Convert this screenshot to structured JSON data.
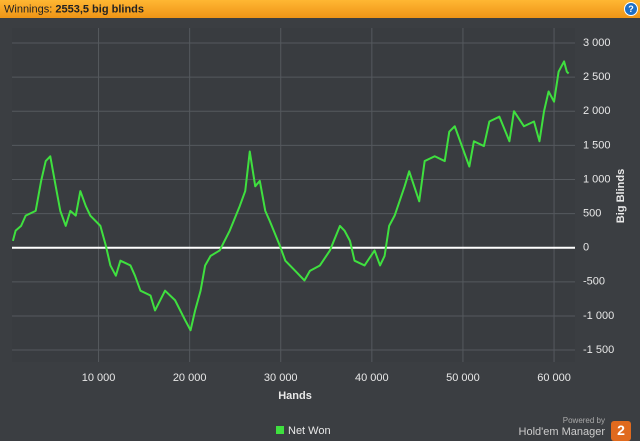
{
  "header": {
    "label": "Winnings:",
    "value": "2553,5 big blinds"
  },
  "chart_data": {
    "type": "line",
    "x_label": "Hands",
    "y_label": "Big Blinds",
    "x": [
      600,
      900,
      1500,
      2000,
      3100,
      3700,
      4200,
      4700,
      5300,
      5800,
      6400,
      6900,
      7500,
      8000,
      8600,
      9100,
      10200,
      10800,
      11300,
      11900,
      12400,
      13500,
      14000,
      14600,
      15700,
      16200,
      17300,
      18400,
      19500,
      20100,
      20600,
      21200,
      21700,
      22300,
      23300,
      24400,
      25500,
      26100,
      26600,
      27200,
      27700,
      28300,
      28800,
      29900,
      30500,
      31600,
      32600,
      33200,
      34300,
      35400,
      36500,
      37000,
      37600,
      38100,
      39200,
      40300,
      40900,
      41400,
      41900,
      42500,
      43600,
      44100,
      45200,
      45800,
      46900,
      48000,
      48500,
      49100,
      50100,
      50700,
      51200,
      52300,
      52900,
      54000,
      55100,
      55600,
      56700,
      57800,
      58400,
      58900,
      59400,
      60000,
      60500,
      61100,
      61400,
      61600
    ],
    "series": [
      {
        "name": "Net Won",
        "color": "#3fe03f",
        "values": [
          100,
          250,
          320,
          470,
          540,
          980,
          1270,
          1340,
          900,
          540,
          320,
          540,
          470,
          830,
          610,
          470,
          320,
          30,
          -260,
          -410,
          -190,
          -260,
          -410,
          -630,
          -700,
          -920,
          -630,
          -770,
          -1060,
          -1210,
          -920,
          -630,
          -260,
          -120,
          -40,
          250,
          610,
          830,
          1410,
          900,
          980,
          540,
          390,
          30,
          -190,
          -340,
          -480,
          -340,
          -260,
          -40,
          320,
          250,
          100,
          -190,
          -260,
          -40,
          -260,
          -120,
          320,
          470,
          900,
          1120,
          680,
          1270,
          1340,
          1270,
          1700,
          1780,
          1410,
          1190,
          1560,
          1490,
          1850,
          1920,
          1560,
          2000,
          1780,
          1850,
          1560,
          2000,
          2290,
          2140,
          2580,
          2730,
          2580,
          2553.5
        ]
      }
    ],
    "xlim": [
      500,
      62300
    ],
    "ylim": [
      -1675,
      3220
    ],
    "xticks": [
      {
        "value": 10000,
        "label": "10 000"
      },
      {
        "value": 20000,
        "label": "20 000"
      },
      {
        "value": 30000,
        "label": "30 000"
      },
      {
        "value": 40000,
        "label": "40 000"
      },
      {
        "value": 50000,
        "label": "50 000"
      },
      {
        "value": 60000,
        "label": "60 000"
      }
    ],
    "yticks": [
      {
        "value": -1500,
        "label": "-1 500"
      },
      {
        "value": -1000,
        "label": "-1 000"
      },
      -500,
      0,
      500,
      {
        "value": 1000,
        "label": "1 000"
      },
      {
        "value": 1500,
        "label": "1 500"
      },
      {
        "value": 2000,
        "label": "2 000"
      },
      {
        "value": 2500,
        "label": "2 500"
      },
      {
        "value": 3000,
        "label": "3 000"
      }
    ],
    "grid": true,
    "zero_line_color": "#ffffff"
  },
  "footer": {
    "powered": "Powered by",
    "product": "Hold'em Manager",
    "version": "2"
  }
}
